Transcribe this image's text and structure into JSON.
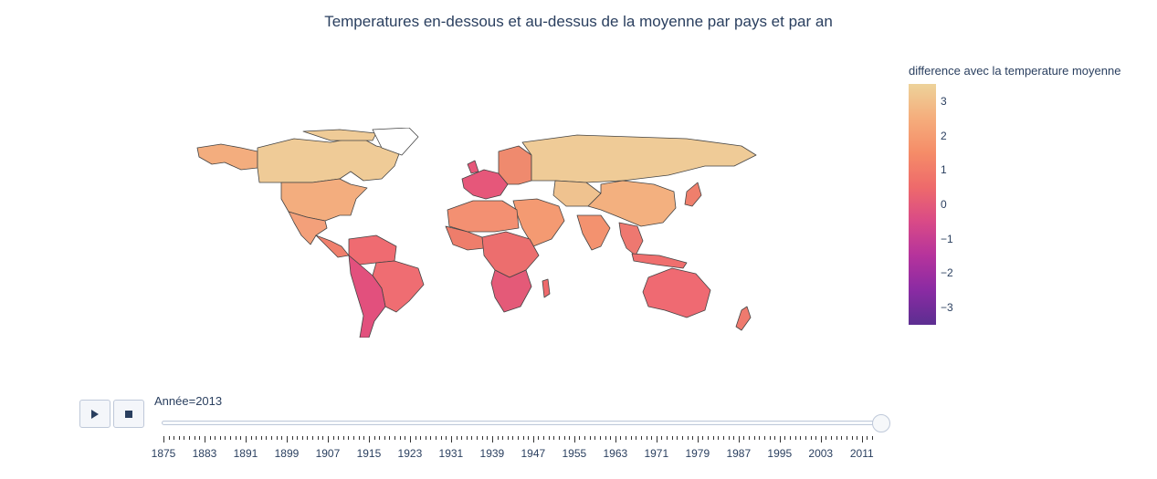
{
  "title": "Temperatures en-dessous et au-dessus de la moyenne par pays et par an",
  "colorbar": {
    "title": "difference avec la temperature moyenne",
    "ticks": [
      "3",
      "2",
      "1",
      "0",
      "−1",
      "−2",
      "−3"
    ],
    "tick_values": [
      3,
      2,
      1,
      0,
      -1,
      -2,
      -3
    ],
    "range": [
      -3.5,
      3.5
    ],
    "colorscale": [
      "#5c2e91",
      "#8a2ba3",
      "#b5339c",
      "#d94a87",
      "#ee6a6b",
      "#f58c68",
      "#f5ad7c",
      "#edd39a"
    ]
  },
  "controls": {
    "play_icon": "play-icon",
    "stop_icon": "stop-icon"
  },
  "slider": {
    "label_prefix": "Année=",
    "current_value": "2013",
    "start_year": 1875,
    "end_year": 2013,
    "tick_labels": [
      "1875",
      "1883",
      "1891",
      "1899",
      "1907",
      "1915",
      "1923",
      "1931",
      "1939",
      "1947",
      "1955",
      "1963",
      "1971",
      "1979",
      "1987",
      "1995",
      "2003",
      "2011"
    ]
  },
  "map": {
    "projection": "equirectangular",
    "colors": {
      "border": "#444444",
      "north_america": "#efcb97",
      "usa": "#f3ad7e",
      "alaska": "#f3ad7e",
      "greenland": "#ffffff",
      "mexico": "#f3a07a",
      "central_america": "#ef7f6c",
      "south_america_north": "#ef6b71",
      "brazil": "#ef6d72",
      "south_america_south": "#e2507d",
      "europe_west": "#e6577a",
      "europe_east": "#ef8a6e",
      "russia": "#efcb97",
      "middle_east": "#f49a72",
      "africa_north": "#f39072",
      "africa_west": "#ee7d6b",
      "africa_central": "#ec6e6e",
      "africa_south": "#e45a78",
      "madagascar": "#ee6a6c",
      "central_asia": "#efc28f",
      "china": "#f3b07f",
      "india": "#f3926f",
      "southeast_asia": "#ee7870",
      "japan": "#ef7f6c",
      "indonesia": "#ef6f6e",
      "australia": "#ef6a72",
      "new_zealand": "#ef7a6e"
    }
  }
}
